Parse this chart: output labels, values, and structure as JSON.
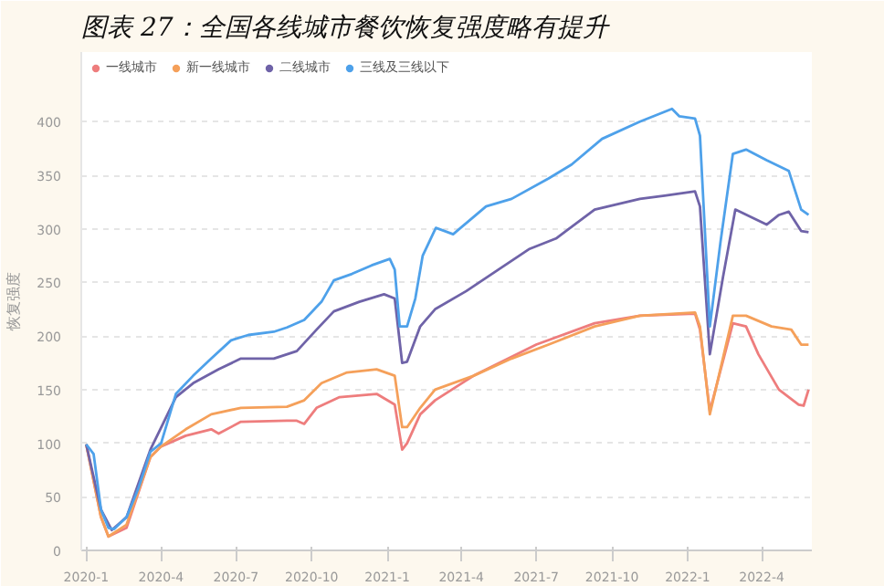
{
  "chart_data": {
    "type": "line",
    "title": "图表 27：全国各线城市餐饮恢复强度略有提升",
    "ylabel": "恢复强度",
    "xlim": [
      "2019-12-26",
      "2022-06-01"
    ],
    "xticks": [
      {
        "value": "2020-01-01",
        "label": "2020-1"
      },
      {
        "value": "2020-04-01",
        "label": "2020-4"
      },
      {
        "value": "2020-07-01",
        "label": "2020-7"
      },
      {
        "value": "2020-10-01",
        "label": "2020-10"
      },
      {
        "value": "2021-01-01",
        "label": "2021-1"
      },
      {
        "value": "2021-04-01",
        "label": "2021-4"
      },
      {
        "value": "2021-07-01",
        "label": "2021-7"
      },
      {
        "value": "2021-10-01",
        "label": "2021-10"
      },
      {
        "value": "2022-01-01",
        "label": "2022-1"
      },
      {
        "value": "2022-04-01",
        "label": "2022-4"
      }
    ],
    "ylim": [
      0,
      465
    ],
    "yticks": [
      0,
      50,
      100,
      150,
      200,
      250,
      300,
      350,
      400
    ],
    "grid": "y",
    "legend": "top left",
    "marker": "none",
    "line_style": "solid",
    "series": [
      {
        "name": "一线城市",
        "color": "#ee7d7d",
        "x": [
          "2020-01-01",
          "2020-01-19",
          "2020-01-28",
          "2020-02-19",
          "2020-03-19",
          "2020-04-01",
          "2020-05-01",
          "2020-06-01",
          "2020-06-10",
          "2020-07-07",
          "2020-09-01",
          "2020-09-13",
          "2020-09-22",
          "2020-10-07",
          "2020-11-04",
          "2020-12-19",
          "2021-01-10",
          "2021-01-19",
          "2021-01-25",
          "2021-02-10",
          "2021-02-28",
          "2021-04-16",
          "2021-07-01",
          "2021-09-10",
          "2021-11-04",
          "2022-01-10",
          "2022-01-16",
          "2022-01-28",
          "2022-02-25",
          "2022-03-13",
          "2022-03-28",
          "2022-04-22",
          "2022-05-16",
          "2022-05-22",
          "2022-05-28"
        ],
        "values": [
          99,
          31,
          13,
          21,
          87,
          97,
          107,
          113,
          109,
          120,
          121,
          121,
          118,
          133,
          143,
          146,
          136,
          94,
          100,
          127,
          140,
          163,
          192,
          212,
          219,
          221,
          206,
          130,
          212,
          209,
          183,
          150,
          136,
          135,
          150
        ]
      },
      {
        "name": "新一线城市",
        "color": "#f5a05a",
        "x": [
          "2020-01-01",
          "2020-01-19",
          "2020-01-28",
          "2020-02-19",
          "2020-03-19",
          "2020-04-01",
          "2020-05-01",
          "2020-06-01",
          "2020-07-07",
          "2020-09-01",
          "2020-09-22",
          "2020-10-13",
          "2020-11-13",
          "2020-12-19",
          "2021-01-10",
          "2021-01-19",
          "2021-01-25",
          "2021-02-10",
          "2021-02-28",
          "2021-04-16",
          "2021-06-01",
          "2021-07-16",
          "2021-09-10",
          "2021-11-04",
          "2022-01-10",
          "2022-01-16",
          "2022-01-28",
          "2022-02-25",
          "2022-03-13",
          "2022-04-13",
          "2022-05-07",
          "2022-05-19",
          "2022-05-28"
        ],
        "values": [
          99,
          31,
          13,
          24,
          87,
          97,
          113,
          127,
          133,
          134,
          140,
          156,
          166,
          169,
          163,
          115,
          115,
          133,
          150,
          163,
          179,
          192,
          209,
          219,
          222,
          209,
          127,
          219,
          219,
          209,
          206,
          192,
          192
        ]
      },
      {
        "name": "二线城市",
        "color": "#6f63a8",
        "x": [
          "2020-01-01",
          "2020-01-19",
          "2020-02-01",
          "2020-02-19",
          "2020-03-19",
          "2020-04-19",
          "2020-05-10",
          "2020-06-10",
          "2020-07-07",
          "2020-08-16",
          "2020-09-13",
          "2020-10-07",
          "2020-10-28",
          "2020-11-28",
          "2020-12-28",
          "2021-01-10",
          "2021-01-19",
          "2021-01-25",
          "2021-02-10",
          "2021-02-28",
          "2021-04-07",
          "2021-05-16",
          "2021-06-22",
          "2021-07-25",
          "2021-09-10",
          "2021-11-04",
          "2021-12-04",
          "2022-01-10",
          "2022-01-16",
          "2022-01-28",
          "2022-02-13",
          "2022-02-28",
          "2022-04-07",
          "2022-04-22",
          "2022-05-04",
          "2022-05-19",
          "2022-05-28"
        ],
        "values": [
          99,
          38,
          19,
          31,
          94,
          143,
          156,
          169,
          179,
          179,
          186,
          206,
          223,
          232,
          239,
          235,
          175,
          176,
          209,
          225,
          242,
          262,
          281,
          291,
          318,
          328,
          331,
          335,
          321,
          183,
          255,
          318,
          304,
          313,
          316,
          298,
          297
        ]
      },
      {
        "name": "三线及三线以下",
        "color": "#4ea1ea",
        "x": [
          "2020-01-01",
          "2020-01-10",
          "2020-01-19",
          "2020-01-28",
          "2020-02-04",
          "2020-02-19",
          "2020-03-04",
          "2020-03-19",
          "2020-04-01",
          "2020-04-19",
          "2020-05-10",
          "2020-06-01",
          "2020-06-25",
          "2020-07-16",
          "2020-08-16",
          "2020-09-01",
          "2020-09-22",
          "2020-10-13",
          "2020-10-28",
          "2020-11-19",
          "2020-12-13",
          "2021-01-04",
          "2021-01-10",
          "2021-01-16",
          "2021-01-25",
          "2021-02-04",
          "2021-02-13",
          "2021-03-01",
          "2021-03-22",
          "2021-05-01",
          "2021-06-01",
          "2021-07-16",
          "2021-08-13",
          "2021-09-19",
          "2021-11-04",
          "2021-12-13",
          "2021-12-22",
          "2022-01-10",
          "2022-01-16",
          "2022-01-28",
          "2022-02-10",
          "2022-02-25",
          "2022-03-13",
          "2022-04-07",
          "2022-05-04",
          "2022-05-19",
          "2022-05-28"
        ],
        "values": [
          99,
          90,
          38,
          21,
          20,
          31,
          57,
          92,
          100,
          146,
          163,
          179,
          196,
          201,
          204,
          208,
          215,
          232,
          252,
          258,
          266,
          272,
          262,
          209,
          209,
          235,
          275,
          301,
          295,
          321,
          328,
          347,
          360,
          384,
          400,
          412,
          405,
          403,
          387,
          209,
          288,
          370,
          374,
          364,
          354,
          318,
          313
        ]
      }
    ]
  }
}
